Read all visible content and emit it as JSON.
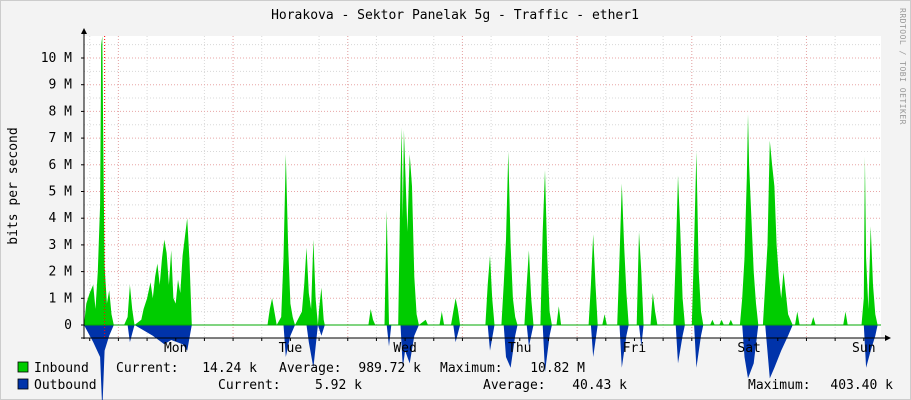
{
  "chart_data": {
    "type": "area",
    "title": "Horakova - Sektor Panelak 5g - Traffic - ether1",
    "ylabel": "bits per second",
    "watermark": "RRDTOOL / TOBI OETIKER",
    "ylim": [
      0,
      10.8
    ],
    "y_unit": "M",
    "y_ticks": [
      {
        "value": 0,
        "label": "0"
      },
      {
        "value": 1,
        "label": "1 M"
      },
      {
        "value": 2,
        "label": "2 M"
      },
      {
        "value": 3,
        "label": "3 M"
      },
      {
        "value": 4,
        "label": "4 M"
      },
      {
        "value": 5,
        "label": "5 M"
      },
      {
        "value": 6,
        "label": "6 M"
      },
      {
        "value": 7,
        "label": "7 M"
      },
      {
        "value": 8,
        "label": "8 M"
      },
      {
        "value": 9,
        "label": "9 M"
      },
      {
        "value": 10,
        "label": "10 M"
      }
    ],
    "x_days": [
      "Mon",
      "Tue",
      "Wed",
      "Thu",
      "Fri",
      "Sat",
      "Sun"
    ],
    "x_range_days": [
      -0.8,
      6.15
    ],
    "grid": true,
    "colors": {
      "inbound": "#00cc00",
      "outbound": "#0033aa",
      "grid_minor": "#d8d8d8",
      "grid_major": "#e8a6a6",
      "axis": "#000000",
      "plot_bg": "#ffffff",
      "outer_bg": "#f3f3f3",
      "now_marker": "#ff0000"
    },
    "series": [
      {
        "name": "Inbound",
        "color": "#00cc00",
        "direction": "up",
        "values_Mbps": [
          [
            -0.8,
            0.0
          ],
          [
            -0.78,
            0.8
          ],
          [
            -0.75,
            1.2
          ],
          [
            -0.72,
            1.5
          ],
          [
            -0.7,
            0.6
          ],
          [
            -0.68,
            2.0
          ],
          [
            -0.66,
            4.5
          ],
          [
            -0.65,
            10.5
          ],
          [
            -0.64,
            10.82
          ],
          [
            -0.63,
            6.0
          ],
          [
            -0.62,
            2.2
          ],
          [
            -0.6,
            0.8
          ],
          [
            -0.58,
            1.3
          ],
          [
            -0.56,
            0.4
          ],
          [
            -0.54,
            0.0
          ],
          [
            -0.45,
            0.0
          ],
          [
            -0.42,
            0.3
          ],
          [
            -0.4,
            1.5
          ],
          [
            -0.38,
            0.6
          ],
          [
            -0.36,
            0.0
          ],
          [
            -0.3,
            0.2
          ],
          [
            -0.28,
            0.6
          ],
          [
            -0.25,
            1.0
          ],
          [
            -0.22,
            1.6
          ],
          [
            -0.2,
            1.0
          ],
          [
            -0.18,
            1.8
          ],
          [
            -0.16,
            2.3
          ],
          [
            -0.14,
            1.5
          ],
          [
            -0.12,
            2.5
          ],
          [
            -0.1,
            3.2
          ],
          [
            -0.08,
            2.7
          ],
          [
            -0.06,
            1.5
          ],
          [
            -0.04,
            2.8
          ],
          [
            -0.02,
            1.0
          ],
          [
            0.0,
            0.8
          ],
          [
            0.02,
            1.7
          ],
          [
            0.04,
            1.2
          ],
          [
            0.06,
            2.6
          ],
          [
            0.08,
            3.3
          ],
          [
            0.1,
            4.0
          ],
          [
            0.12,
            2.4
          ],
          [
            0.14,
            0.0
          ],
          [
            0.8,
            0.0
          ],
          [
            0.82,
            0.6
          ],
          [
            0.84,
            1.0
          ],
          [
            0.86,
            0.5
          ],
          [
            0.88,
            0.0
          ],
          [
            0.92,
            0.3
          ],
          [
            0.94,
            2.5
          ],
          [
            0.96,
            6.4
          ],
          [
            0.98,
            3.0
          ],
          [
            1.0,
            0.8
          ],
          [
            1.02,
            0.3
          ],
          [
            1.04,
            0.0
          ],
          [
            1.1,
            0.5
          ],
          [
            1.12,
            1.5
          ],
          [
            1.14,
            2.9
          ],
          [
            1.16,
            1.2
          ],
          [
            1.18,
            0.6
          ],
          [
            1.2,
            3.2
          ],
          [
            1.22,
            1.0
          ],
          [
            1.24,
            0.0
          ],
          [
            1.25,
            0.6
          ],
          [
            1.27,
            1.4
          ],
          [
            1.29,
            0.2
          ],
          [
            1.3,
            0.0
          ],
          [
            1.68,
            0.0
          ],
          [
            1.7,
            0.6
          ],
          [
            1.72,
            0.2
          ],
          [
            1.74,
            0.0
          ],
          [
            1.82,
            0.0
          ],
          [
            1.84,
            4.3
          ],
          [
            1.86,
            0.0
          ],
          [
            1.94,
            0.0
          ],
          [
            1.96,
            5.5
          ],
          [
            1.97,
            7.4
          ],
          [
            1.98,
            4.0
          ],
          [
            1.99,
            7.3
          ],
          [
            2.0,
            6.0
          ],
          [
            2.02,
            3.5
          ],
          [
            2.04,
            6.4
          ],
          [
            2.06,
            5.2
          ],
          [
            2.08,
            1.8
          ],
          [
            2.1,
            0.4
          ],
          [
            2.12,
            0.0
          ],
          [
            2.18,
            0.2
          ],
          [
            2.2,
            0.0
          ],
          [
            2.3,
            0.0
          ],
          [
            2.32,
            0.5
          ],
          [
            2.34,
            0.0
          ],
          [
            2.4,
            0.0
          ],
          [
            2.42,
            0.5
          ],
          [
            2.44,
            1.0
          ],
          [
            2.46,
            0.6
          ],
          [
            2.48,
            0.0
          ],
          [
            2.7,
            0.0
          ],
          [
            2.72,
            1.5
          ],
          [
            2.74,
            2.6
          ],
          [
            2.76,
            1.0
          ],
          [
            2.78,
            0.0
          ],
          [
            2.84,
            0.0
          ],
          [
            2.86,
            1.5
          ],
          [
            2.88,
            3.2
          ],
          [
            2.9,
            6.5
          ],
          [
            2.92,
            3.0
          ],
          [
            2.94,
            1.0
          ],
          [
            2.96,
            0.3
          ],
          [
            2.98,
            0.0
          ],
          [
            3.04,
            0.0
          ],
          [
            3.06,
            1.5
          ],
          [
            3.08,
            2.8
          ],
          [
            3.1,
            1.0
          ],
          [
            3.12,
            0.0
          ],
          [
            3.18,
            0.0
          ],
          [
            3.2,
            3.5
          ],
          [
            3.22,
            5.8
          ],
          [
            3.24,
            2.5
          ],
          [
            3.26,
            0.5
          ],
          [
            3.28,
            0.0
          ],
          [
            3.32,
            0.0
          ],
          [
            3.34,
            0.7
          ],
          [
            3.36,
            0.0
          ],
          [
            3.6,
            0.0
          ],
          [
            3.62,
            1.5
          ],
          [
            3.64,
            3.4
          ],
          [
            3.66,
            1.5
          ],
          [
            3.68,
            0.0
          ],
          [
            3.72,
            0.0
          ],
          [
            3.74,
            0.4
          ],
          [
            3.76,
            0.0
          ],
          [
            3.85,
            0.0
          ],
          [
            3.87,
            2.5
          ],
          [
            3.89,
            5.3
          ],
          [
            3.91,
            3.0
          ],
          [
            3.93,
            1.2
          ],
          [
            3.95,
            0.0
          ],
          [
            4.02,
            0.0
          ],
          [
            4.04,
            3.5
          ],
          [
            4.06,
            2.0
          ],
          [
            4.08,
            0.0
          ],
          [
            4.14,
            0.0
          ],
          [
            4.16,
            1.2
          ],
          [
            4.18,
            0.5
          ],
          [
            4.2,
            0.0
          ],
          [
            4.34,
            0.0
          ],
          [
            4.36,
            2.5
          ],
          [
            4.38,
            5.6
          ],
          [
            4.4,
            3.5
          ],
          [
            4.42,
            1.0
          ],
          [
            4.44,
            0.0
          ],
          [
            4.5,
            0.0
          ],
          [
            4.52,
            3.0
          ],
          [
            4.54,
            6.5
          ],
          [
            4.56,
            2.0
          ],
          [
            4.58,
            0.5
          ],
          [
            4.6,
            0.0
          ],
          [
            4.66,
            0.0
          ],
          [
            4.68,
            0.2
          ],
          [
            4.7,
            0.0
          ],
          [
            4.74,
            0.0
          ],
          [
            4.76,
            0.2
          ],
          [
            4.78,
            0.0
          ],
          [
            4.82,
            0.0
          ],
          [
            4.84,
            0.2
          ],
          [
            4.86,
            0.0
          ],
          [
            4.92,
            0.0
          ],
          [
            4.94,
            1.0
          ],
          [
            4.96,
            2.5
          ],
          [
            4.98,
            5.5
          ],
          [
            4.99,
            7.9
          ],
          [
            5.0,
            6.0
          ],
          [
            5.02,
            4.0
          ],
          [
            5.04,
            2.0
          ],
          [
            5.06,
            0.8
          ],
          [
            5.08,
            0.0
          ],
          [
            5.12,
            0.0
          ],
          [
            5.14,
            1.5
          ],
          [
            5.16,
            3.0
          ],
          [
            5.18,
            6.9
          ],
          [
            5.2,
            6.0
          ],
          [
            5.22,
            5.2
          ],
          [
            5.24,
            3.0
          ],
          [
            5.26,
            1.8
          ],
          [
            5.28,
            1.0
          ],
          [
            5.3,
            2.0
          ],
          [
            5.32,
            1.2
          ],
          [
            5.34,
            0.4
          ],
          [
            5.36,
            0.2
          ],
          [
            5.38,
            0.0
          ],
          [
            5.4,
            0.0
          ],
          [
            5.42,
            0.5
          ],
          [
            5.44,
            0.0
          ],
          [
            5.54,
            0.0
          ],
          [
            5.56,
            0.3
          ],
          [
            5.58,
            0.0
          ],
          [
            5.82,
            0.0
          ],
          [
            5.84,
            0.5
          ],
          [
            5.86,
            0.0
          ],
          [
            5.98,
            0.0
          ],
          [
            6.0,
            1.0
          ],
          [
            6.01,
            6.3
          ],
          [
            6.02,
            2.5
          ],
          [
            6.04,
            0.6
          ],
          [
            6.06,
            3.7
          ],
          [
            6.08,
            1.5
          ],
          [
            6.1,
            0.4
          ],
          [
            6.12,
            0.0
          ]
        ]
      },
      {
        "name": "Outbound",
        "color": "#0033aa",
        "direction": "down",
        "values_Mbps": [
          [
            -0.8,
            0.0
          ],
          [
            -0.72,
            0.08
          ],
          [
            -0.66,
            0.15
          ],
          [
            -0.64,
            0.4
          ],
          [
            -0.62,
            0.12
          ],
          [
            -0.58,
            0.05
          ],
          [
            -0.54,
            0.0
          ],
          [
            -0.42,
            0.0
          ],
          [
            -0.4,
            0.08
          ],
          [
            -0.36,
            0.0
          ],
          [
            -0.2,
            0.05
          ],
          [
            -0.1,
            0.09
          ],
          [
            -0.04,
            0.07
          ],
          [
            0.06,
            0.09
          ],
          [
            0.1,
            0.12
          ],
          [
            0.14,
            0.0
          ],
          [
            0.94,
            0.0
          ],
          [
            0.96,
            0.15
          ],
          [
            1.0,
            0.05
          ],
          [
            1.04,
            0.0
          ],
          [
            1.14,
            0.0
          ],
          [
            1.16,
            0.08
          ],
          [
            1.2,
            0.2
          ],
          [
            1.24,
            0.0
          ],
          [
            1.27,
            0.05
          ],
          [
            1.3,
            0.0
          ],
          [
            1.84,
            0.0
          ],
          [
            1.86,
            0.1
          ],
          [
            1.88,
            0.0
          ],
          [
            1.96,
            0.0
          ],
          [
            1.98,
            0.2
          ],
          [
            2.0,
            0.12
          ],
          [
            2.04,
            0.18
          ],
          [
            2.08,
            0.05
          ],
          [
            2.12,
            0.0
          ],
          [
            2.42,
            0.0
          ],
          [
            2.44,
            0.08
          ],
          [
            2.48,
            0.0
          ],
          [
            2.72,
            0.0
          ],
          [
            2.74,
            0.12
          ],
          [
            2.78,
            0.0
          ],
          [
            2.86,
            0.0
          ],
          [
            2.88,
            0.15
          ],
          [
            2.92,
            0.2
          ],
          [
            2.96,
            0.05
          ],
          [
            2.98,
            0.0
          ],
          [
            3.06,
            0.0
          ],
          [
            3.08,
            0.1
          ],
          [
            3.12,
            0.0
          ],
          [
            3.2,
            0.0
          ],
          [
            3.22,
            0.22
          ],
          [
            3.26,
            0.05
          ],
          [
            3.28,
            0.0
          ],
          [
            3.62,
            0.0
          ],
          [
            3.64,
            0.15
          ],
          [
            3.68,
            0.0
          ],
          [
            3.87,
            0.0
          ],
          [
            3.89,
            0.2
          ],
          [
            3.93,
            0.05
          ],
          [
            3.95,
            0.0
          ],
          [
            4.04,
            0.0
          ],
          [
            4.06,
            0.1
          ],
          [
            4.08,
            0.0
          ],
          [
            4.36,
            0.0
          ],
          [
            4.38,
            0.18
          ],
          [
            4.42,
            0.05
          ],
          [
            4.44,
            0.0
          ],
          [
            4.52,
            0.0
          ],
          [
            4.54,
            0.2
          ],
          [
            4.58,
            0.05
          ],
          [
            4.6,
            0.0
          ],
          [
            4.94,
            0.0
          ],
          [
            4.96,
            0.15
          ],
          [
            4.99,
            0.25
          ],
          [
            5.04,
            0.18
          ],
          [
            5.08,
            0.0
          ],
          [
            5.14,
            0.0
          ],
          [
            5.18,
            0.25
          ],
          [
            5.22,
            0.2
          ],
          [
            5.28,
            0.12
          ],
          [
            5.34,
            0.05
          ],
          [
            5.38,
            0.0
          ],
          [
            6.0,
            0.0
          ],
          [
            6.02,
            0.2
          ],
          [
            6.06,
            0.12
          ],
          [
            6.1,
            0.05
          ],
          [
            6.12,
            0.0
          ]
        ]
      }
    ]
  },
  "legend": {
    "inbound": {
      "label": "Inbound",
      "current_label": "Current:",
      "current": "14.24 k",
      "average_label": "Average:",
      "average": "989.72 k",
      "maximum_label": "Maximum:",
      "maximum": "10.82 M",
      "color": "#00cc00"
    },
    "outbound": {
      "label": "Outbound",
      "current_label": "Current:",
      "current": "5.92 k",
      "average_label": "Average:",
      "average": "40.43 k",
      "maximum_label": "Maximum:",
      "maximum": "403.40 k",
      "color": "#0033aa"
    }
  }
}
